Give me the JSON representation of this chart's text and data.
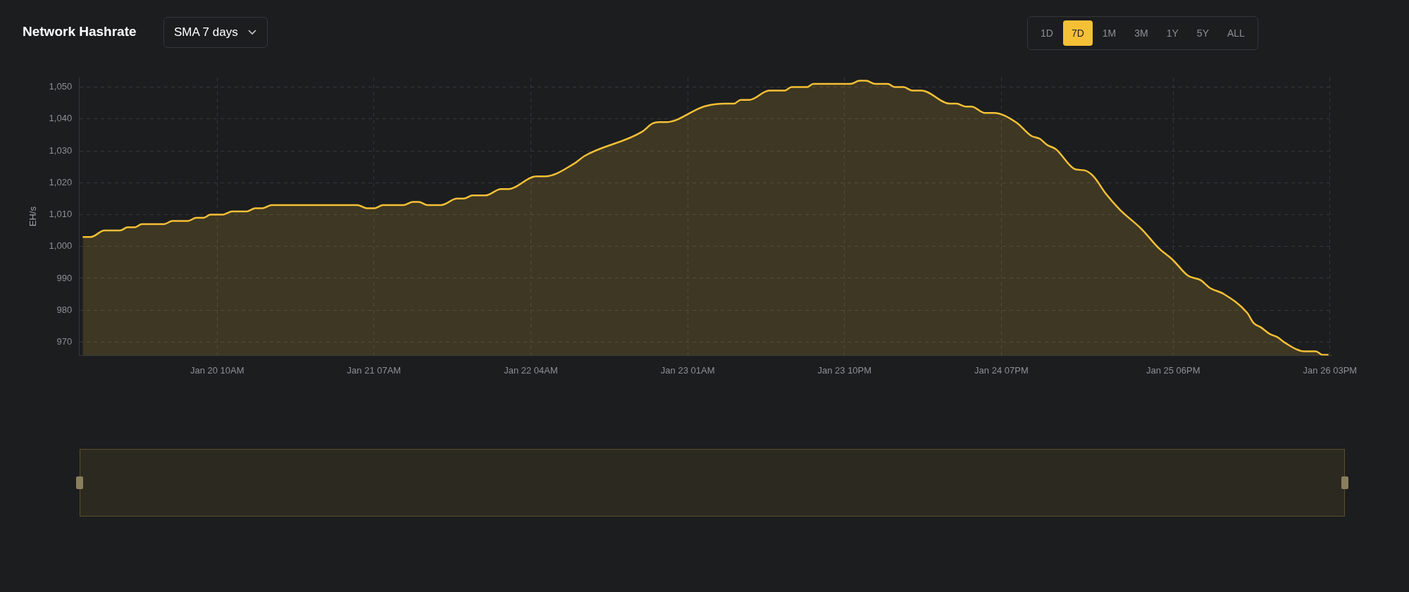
{
  "chart_data": {
    "type": "area",
    "title": "Network Hashrate",
    "subtitle": "SMA 7 days",
    "annotations": [
      "1D",
      "7D",
      "1M",
      "3M",
      "1Y",
      "5Y",
      "ALL"
    ],
    "ylabel": "EH/s",
    "xlim": [
      "--01-19T15:30",
      "--01-26T15:12"
    ],
    "ylim": [
      965.8,
      1053
    ],
    "xticks": [
      {
        "value": "--01-20T10:00",
        "label": "Jan 20 10AM"
      },
      {
        "value": "--01-21T07:00",
        "label": "Jan 21 07AM"
      },
      {
        "value": "--01-22T04:00",
        "label": "Jan 22 04AM"
      },
      {
        "value": "--01-23T01:00",
        "label": "Jan 23 01AM"
      },
      {
        "value": "--01-23T22:00",
        "label": "Jan 23 10PM"
      },
      {
        "value": "--01-24T19:00",
        "label": "Jan 24 07PM"
      },
      {
        "value": "--01-25T18:00",
        "label": "Jan 25 06PM"
      },
      {
        "value": "--01-26T15:00",
        "label": "Jan 26 03PM"
      }
    ],
    "yticks": [
      970,
      980,
      990,
      {
        "value": 1000,
        "label": "1,000"
      },
      {
        "value": 1010,
        "label": "1,010"
      },
      {
        "value": 1020,
        "label": "1,020"
      },
      {
        "value": 1030,
        "label": "1,030"
      },
      {
        "value": 1040,
        "label": "1,040"
      },
      {
        "value": 1050,
        "label": "1,050"
      }
    ],
    "grid": true,
    "legend": false,
    "marker": "none",
    "line_style": "solid",
    "series": [
      {
        "color": "#f5c036",
        "x": [
          "--01-19T16:00",
          "--01-19T17:06",
          "--01-19T18:54",
          "--01-19T21:00",
          "--01-19T22:00",
          "--01-19T23:00",
          "--01-19T23:54",
          "--01-20T02:54",
          "--01-20T04:00",
          "--01-20T06:06",
          "--01-20T07:12",
          "--01-20T08:12",
          "--01-20T09:06",
          "--01-20T10:48",
          "--01-20T12:00",
          "--01-20T14:00",
          "--01-20T15:06",
          "--01-20T16:06",
          "--01-20T17:18",
          "--01-21T04:48",
          "--01-21T06:00",
          "--01-21T07:06",
          "--01-21T08:12",
          "--01-21T11:00",
          "--01-21T12:12",
          "--01-21T13:00",
          "--01-21T14:06",
          "--01-21T16:00",
          "--01-21T18:06",
          "--01-21T19:00",
          "--01-21T20:12",
          "--01-21T21:54",
          "--01-22T00:00",
          "--01-22T01:00",
          "--01-22T04:42",
          "--01-22T05:54",
          "--01-22T09:48",
          "--01-22T11:12",
          "--01-22T18:54",
          "--01-22T20:18",
          "--01-22T21:12",
          "--01-22T22:06",
          "--01-23T03:18",
          "--01-23T06:00",
          "--01-23T07:12",
          "--01-23T08:06",
          "--01-23T09:18",
          "--01-23T11:54",
          "--01-23T14:00",
          "--01-23T14:54",
          "--01-23T17:00",
          "--01-23T17:48",
          "--01-23T22:48",
          "--01-24T00:00",
          "--01-24T00:54",
          "--01-24T02:06",
          "--01-24T03:48",
          "--01-24T04:42",
          "--01-24T05:54",
          "--01-24T07:06",
          "--01-24T08:18",
          "--01-24T12:06",
          "--01-24T13:00",
          "--01-24T14:12",
          "--01-24T15:00",
          "--01-24T16:48",
          "--01-24T18:00",
          "--01-24T21:00",
          "--01-24T23:00",
          "--01-25T00:12",
          "--01-25T01:06",
          "--01-25T02:18",
          "--01-25T04:54",
          "--01-25T06:06",
          "--01-25T07:18",
          "--01-25T09:00",
          "--01-25T10:48",
          "--01-25T13:48",
          "--01-25T16:06",
          "--01-25T17:54",
          "--01-25T20:00",
          "--01-25T21:42",
          "--01-25T22:54",
          "--01-26T00:42",
          "--01-26T03:54",
          "--01-26T04:48",
          "--01-26T05:42",
          "--01-26T06:54",
          "--01-26T08:00",
          "--01-26T08:54",
          "--01-26T11:36",
          "--01-26T13:06",
          "--01-26T14:00",
          "--01-26T14:48"
        ],
        "values": [
          1003,
          1003,
          1005,
          1005,
          1006,
          1006,
          1007,
          1007,
          1008,
          1008,
          1009,
          1009,
          1010,
          1010,
          1011,
          1011,
          1012,
          1012,
          1013,
          1013,
          1012,
          1012,
          1013,
          1013,
          1014,
          1014,
          1013,
          1013,
          1015,
          1015,
          1016,
          1016,
          1018,
          1018,
          1022,
          1022,
          1026,
          1028.4,
          1036,
          1038.6,
          1039,
          1039,
          1044,
          1044.8,
          1044.8,
          1046,
          1046,
          1048.9,
          1048.9,
          1050,
          1050,
          1051,
          1051,
          1052,
          1052,
          1051,
          1051,
          1050,
          1050,
          1048.9,
          1048.9,
          1044.8,
          1044.8,
          1043.9,
          1043.9,
          1041.9,
          1041.9,
          1038.9,
          1034.7,
          1033.7,
          1031.9,
          1030.5,
          1024.2,
          1023.9,
          1022.1,
          1016.5,
          1011.7,
          1005.4,
          999.4,
          995.9,
          990.8,
          989.4,
          987,
          985.2,
          979.2,
          975.9,
          974.7,
          972.6,
          971.5,
          969.9,
          967.1,
          967.1,
          966,
          966
        ]
      }
    ]
  }
}
